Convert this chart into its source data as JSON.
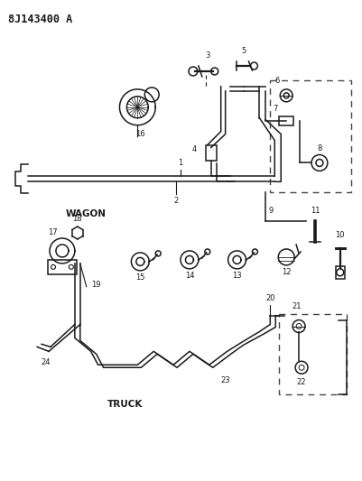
{
  "title": "8J143400 A",
  "bg_color": "#ffffff",
  "line_color": "#1a1a1a",
  "wagon_label": "WAGON",
  "truck_label": "TRUCK"
}
